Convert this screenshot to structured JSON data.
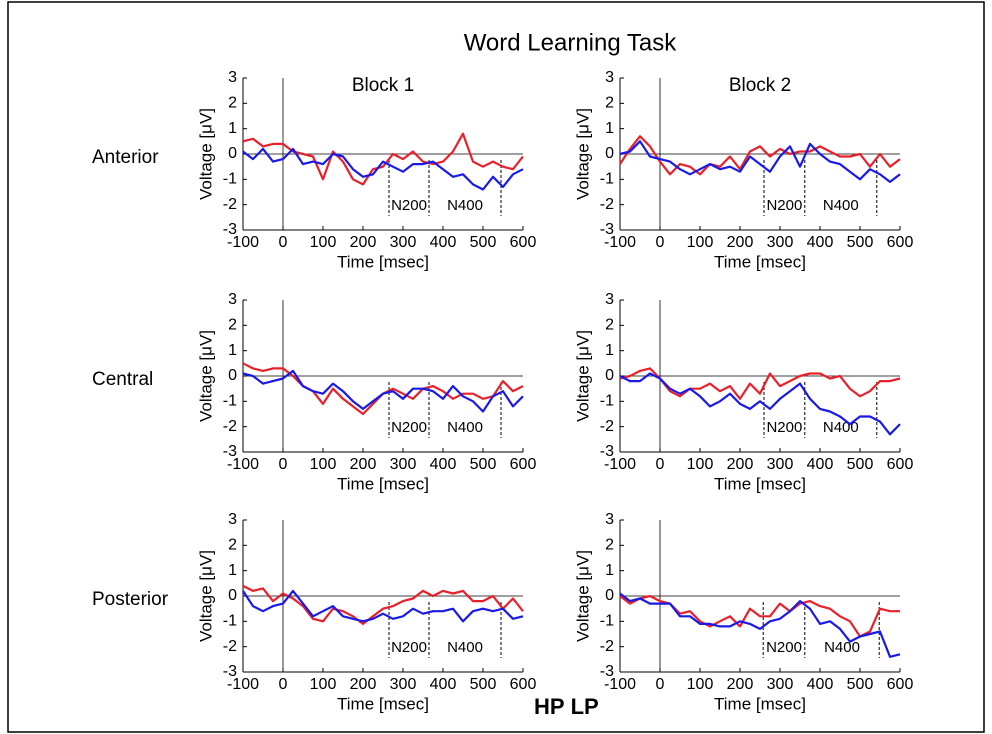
{
  "title": "Word Learning Task",
  "column_titles": [
    "Block 1",
    "Block 2"
  ],
  "row_titles": [
    "Anterior",
    "Central",
    "Posterior"
  ],
  "legend": [
    {
      "name": "HP",
      "color": "#e8202a"
    },
    {
      "name": "LP",
      "color": "#1a1ae6"
    }
  ],
  "chart_data": [
    {
      "type": "line",
      "xlabel": "Time [msec]",
      "ylabel": "Voltage [μV]",
      "x": [
        -100,
        -75,
        -50,
        -25,
        0,
        25,
        50,
        75,
        100,
        125,
        150,
        175,
        200,
        225,
        250,
        275,
        300,
        325,
        350,
        375,
        400,
        425,
        450,
        475,
        500,
        525,
        550,
        575,
        600
      ],
      "series": [
        {
          "values": [
            0.5,
            0.6,
            0.3,
            0.4,
            0.4,
            0.1,
            0.0,
            -0.1,
            -1.0,
            0.1,
            -0.3,
            -1.0,
            -1.2,
            -0.6,
            -0.5,
            0.0,
            -0.2,
            0.1,
            -0.3,
            -0.4,
            -0.3,
            0.1,
            0.8,
            -0.3,
            -0.5,
            -0.3,
            -0.5,
            -0.6,
            -0.1
          ]
        },
        {
          "values": [
            0.1,
            -0.2,
            0.2,
            -0.3,
            -0.2,
            0.2,
            -0.4,
            -0.3,
            -0.4,
            0.0,
            -0.1,
            -0.6,
            -0.9,
            -0.8,
            -0.3,
            -0.5,
            -0.7,
            -0.4,
            -0.4,
            -0.3,
            -0.6,
            -0.9,
            -0.8,
            -1.2,
            -1.4,
            -0.9,
            -1.3,
            -0.8,
            -0.6
          ]
        }
      ],
      "xlim": [
        -100,
        600
      ],
      "ylim": [
        -3,
        3
      ],
      "xticks": [
        -100,
        0,
        100,
        200,
        300,
        400,
        500,
        600
      ],
      "yticks": [
        -3,
        -2,
        -1,
        0,
        1,
        2,
        3
      ],
      "markers": [
        265,
        365,
        545
      ],
      "annotations": [
        "N200",
        "N400"
      ]
    },
    {
      "type": "line",
      "xlabel": "Time [msec]",
      "ylabel": "Voltage [μV]",
      "x": [
        -100,
        -75,
        -50,
        -25,
        0,
        25,
        50,
        75,
        100,
        125,
        150,
        175,
        200,
        225,
        250,
        275,
        300,
        325,
        350,
        375,
        400,
        425,
        450,
        475,
        500,
        525,
        550,
        575,
        600
      ],
      "series": [
        {
          "values": [
            -0.4,
            0.2,
            0.7,
            0.3,
            -0.3,
            -0.8,
            -0.4,
            -0.5,
            -0.8,
            -0.4,
            -0.5,
            -0.1,
            -0.6,
            0.1,
            0.3,
            -0.1,
            0.2,
            0.0,
            0.1,
            0.1,
            0.3,
            0.1,
            -0.1,
            -0.1,
            0.0,
            -0.5,
            0.0,
            -0.5,
            -0.2
          ]
        },
        {
          "values": [
            0.0,
            0.1,
            0.5,
            -0.1,
            -0.2,
            -0.3,
            -0.6,
            -0.8,
            -0.6,
            -0.4,
            -0.6,
            -0.5,
            -0.7,
            -0.1,
            -0.4,
            -0.7,
            -0.1,
            0.3,
            -0.5,
            0.4,
            0.0,
            -0.3,
            -0.4,
            -0.7,
            -1.0,
            -0.6,
            -0.8,
            -1.1,
            -0.8
          ]
        }
      ],
      "xlim": [
        -100,
        600
      ],
      "ylim": [
        -3,
        3
      ],
      "xticks": [
        -100,
        0,
        100,
        200,
        300,
        400,
        500,
        600
      ],
      "yticks": [
        -3,
        -2,
        -1,
        0,
        1,
        2,
        3
      ],
      "markers": [
        260,
        362,
        542
      ],
      "annotations": [
        "N200",
        "N400"
      ]
    },
    {
      "type": "line",
      "xlabel": "Time [msec]",
      "ylabel": "Voltage [μV]",
      "x": [
        -100,
        -75,
        -50,
        -25,
        0,
        25,
        50,
        75,
        100,
        125,
        150,
        175,
        200,
        225,
        250,
        275,
        300,
        325,
        350,
        375,
        400,
        425,
        450,
        475,
        500,
        525,
        550,
        575,
        600
      ],
      "series": [
        {
          "values": [
            0.5,
            0.3,
            0.2,
            0.3,
            0.3,
            0.0,
            -0.4,
            -0.6,
            -1.1,
            -0.5,
            -0.9,
            -1.2,
            -1.5,
            -1.1,
            -0.7,
            -0.5,
            -0.7,
            -0.9,
            -0.5,
            -0.4,
            -0.6,
            -0.9,
            -0.7,
            -0.7,
            -0.9,
            -0.8,
            -0.2,
            -0.6,
            -0.4
          ]
        },
        {
          "values": [
            0.1,
            0.0,
            -0.3,
            -0.2,
            -0.1,
            0.2,
            -0.4,
            -0.6,
            -0.7,
            -0.3,
            -0.6,
            -1.0,
            -1.3,
            -1.0,
            -0.7,
            -0.6,
            -0.9,
            -0.5,
            -0.5,
            -0.6,
            -0.9,
            -0.4,
            -0.8,
            -1.0,
            -1.4,
            -0.8,
            -0.6,
            -1.2,
            -0.8
          ]
        }
      ],
      "xlim": [
        -100,
        600
      ],
      "ylim": [
        -3,
        3
      ],
      "xticks": [
        -100,
        0,
        100,
        200,
        300,
        400,
        500,
        600
      ],
      "yticks": [
        -3,
        -2,
        -1,
        0,
        1,
        2,
        3
      ],
      "markers": [
        265,
        365,
        545
      ],
      "annotations": [
        "N200",
        "N400"
      ]
    },
    {
      "type": "line",
      "xlabel": "Time [msec]",
      "ylabel": "Voltage [μV]",
      "x": [
        -100,
        -75,
        -50,
        -25,
        0,
        25,
        50,
        75,
        100,
        125,
        150,
        175,
        200,
        225,
        250,
        275,
        300,
        325,
        350,
        375,
        400,
        425,
        450,
        475,
        500,
        525,
        550,
        575,
        600
      ],
      "series": [
        {
          "values": [
            -0.1,
            0.0,
            0.2,
            0.3,
            -0.1,
            -0.6,
            -0.8,
            -0.5,
            -0.5,
            -0.3,
            -0.6,
            -0.4,
            -0.9,
            -0.3,
            -0.7,
            0.1,
            -0.4,
            -0.2,
            0.0,
            0.1,
            0.1,
            -0.1,
            0.0,
            -0.5,
            -0.8,
            -0.6,
            -0.2,
            -0.2,
            -0.1
          ]
        },
        {
          "values": [
            0.0,
            -0.2,
            -0.2,
            0.1,
            -0.1,
            -0.5,
            -0.7,
            -0.5,
            -0.8,
            -1.2,
            -1.0,
            -0.7,
            -1.1,
            -1.3,
            -1.0,
            -1.3,
            -0.9,
            -0.6,
            -0.3,
            -0.9,
            -1.3,
            -1.4,
            -1.6,
            -1.9,
            -1.6,
            -1.6,
            -1.8,
            -2.3,
            -1.9
          ]
        }
      ],
      "xlim": [
        -100,
        600
      ],
      "ylim": [
        -3,
        3
      ],
      "xticks": [
        -100,
        0,
        100,
        200,
        300,
        400,
        500,
        600
      ],
      "yticks": [
        -3,
        -2,
        -1,
        0,
        1,
        2,
        3
      ],
      "markers": [
        260,
        362,
        542
      ],
      "annotations": [
        "N200",
        "N400"
      ]
    },
    {
      "type": "line",
      "xlabel": "Time [msec]",
      "ylabel": "Voltage [μV]",
      "x": [
        -100,
        -75,
        -50,
        -25,
        0,
        25,
        50,
        75,
        100,
        125,
        150,
        175,
        200,
        225,
        250,
        275,
        300,
        325,
        350,
        375,
        400,
        425,
        450,
        475,
        500,
        525,
        550,
        575,
        600
      ],
      "series": [
        {
          "values": [
            0.4,
            0.2,
            0.3,
            -0.2,
            0.1,
            -0.1,
            -0.4,
            -0.9,
            -1.0,
            -0.5,
            -0.6,
            -0.8,
            -1.1,
            -0.8,
            -0.5,
            -0.4,
            -0.2,
            -0.1,
            0.2,
            0.0,
            0.2,
            0.1,
            0.2,
            -0.2,
            -0.2,
            0.0,
            -0.5,
            -0.1,
            -0.6
          ]
        },
        {
          "values": [
            0.2,
            -0.4,
            -0.6,
            -0.4,
            -0.3,
            0.2,
            -0.3,
            -0.8,
            -0.6,
            -0.4,
            -0.8,
            -0.9,
            -1.0,
            -0.9,
            -0.7,
            -0.9,
            -0.8,
            -0.5,
            -0.7,
            -0.6,
            -0.6,
            -0.5,
            -1.0,
            -0.6,
            -0.5,
            -0.6,
            -0.5,
            -0.9,
            -0.8
          ]
        }
      ],
      "xlim": [
        -100,
        600
      ],
      "ylim": [
        -3,
        3
      ],
      "xticks": [
        -100,
        0,
        100,
        200,
        300,
        400,
        500,
        600
      ],
      "yticks": [
        -3,
        -2,
        -1,
        0,
        1,
        2,
        3
      ],
      "markers": [
        265,
        365,
        545
      ],
      "annotations": [
        "N200",
        "N400"
      ]
    },
    {
      "type": "line",
      "xlabel": "Time [msec]",
      "ylabel": "Voltage [μV]",
      "x": [
        -100,
        -75,
        -50,
        -25,
        0,
        25,
        50,
        75,
        100,
        125,
        150,
        175,
        200,
        225,
        250,
        275,
        300,
        325,
        350,
        375,
        400,
        425,
        450,
        475,
        500,
        525,
        550,
        575,
        600
      ],
      "series": [
        {
          "values": [
            0.0,
            -0.3,
            -0.1,
            0.0,
            -0.2,
            -0.3,
            -0.7,
            -0.6,
            -1.0,
            -1.2,
            -1.0,
            -0.8,
            -1.2,
            -0.5,
            -0.8,
            -0.8,
            -0.3,
            -0.6,
            -0.3,
            -0.2,
            -0.4,
            -0.5,
            -0.8,
            -1.0,
            -1.6,
            -1.4,
            -0.5,
            -0.6,
            -0.6
          ]
        },
        {
          "values": [
            0.1,
            -0.2,
            -0.1,
            -0.3,
            -0.3,
            -0.3,
            -0.8,
            -0.8,
            -1.1,
            -1.1,
            -1.2,
            -1.2,
            -1.0,
            -1.1,
            -1.3,
            -1.0,
            -0.9,
            -0.6,
            -0.2,
            -0.5,
            -1.1,
            -1.0,
            -1.3,
            -1.8,
            -1.6,
            -1.5,
            -1.4,
            -2.4,
            -2.3
          ]
        }
      ],
      "xlim": [
        -100,
        600
      ],
      "ylim": [
        -3,
        3
      ],
      "xticks": [
        -100,
        0,
        100,
        200,
        300,
        400,
        500,
        600
      ],
      "yticks": [
        -3,
        -2,
        -1,
        0,
        1,
        2,
        3
      ],
      "markers": [
        258,
        362,
        548
      ],
      "annotations": [
        "N200",
        "N400"
      ]
    }
  ]
}
